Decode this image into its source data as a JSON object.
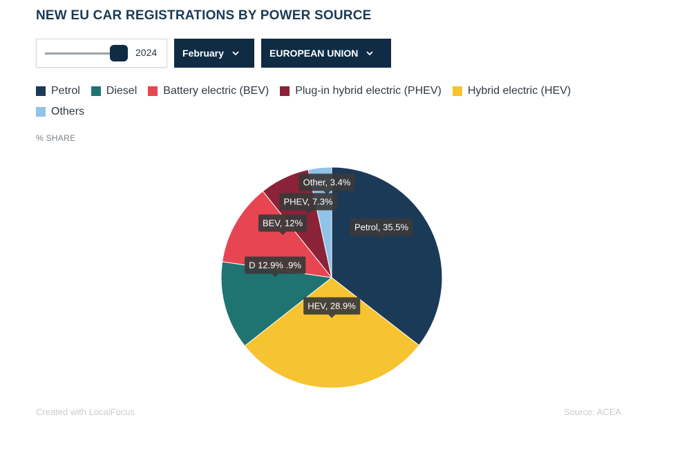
{
  "header": {
    "title": "NEW EU CAR REGISTRATIONS BY POWER SOURCE"
  },
  "controls": {
    "year_slider": {
      "value": "2024",
      "position_fraction": 1.0
    },
    "month_dropdown": {
      "label": "February"
    },
    "region_dropdown": {
      "label": "EUROPEAN UNION"
    }
  },
  "legend": [
    {
      "label": "Petrol",
      "color": "#1b3a57"
    },
    {
      "label": "Diesel",
      "color": "#1f7471"
    },
    {
      "label": "Battery electric (BEV)",
      "color": "#e84552"
    },
    {
      "label": "Plug-in hybrid electric (PHEV)",
      "color": "#8c2237"
    },
    {
      "label": "Hybrid electric (HEV)",
      "color": "#f6c331"
    },
    {
      "label": "Others",
      "color": "#8fc3e8"
    }
  ],
  "unit_label": "% SHARE",
  "footer": {
    "credit": "Created with LocalFocus",
    "source": "Source: ACEA"
  },
  "chart_data": {
    "type": "pie",
    "start": "top, clockwise",
    "slices": [
      {
        "name": "Petrol",
        "value": 35.5,
        "label": "Petrol, 35.5%",
        "color": "#1b3a57"
      },
      {
        "name": "HEV",
        "value": 28.9,
        "label": "HEV, 28.9%",
        "color": "#f6c331"
      },
      {
        "name": "Diesel",
        "value": 12.9,
        "label": "D 12.9% .9%",
        "color": "#1f7471"
      },
      {
        "name": "BEV",
        "value": 12.0,
        "label": "BEV, 12%",
        "color": "#e84552"
      },
      {
        "name": "PHEV",
        "value": 7.3,
        "label": "PHEV, 7.3%",
        "color": "#8c2237"
      },
      {
        "name": "Other",
        "value": 3.4,
        "label": "Other, 3.4%",
        "color": "#8fc3e8"
      }
    ]
  }
}
